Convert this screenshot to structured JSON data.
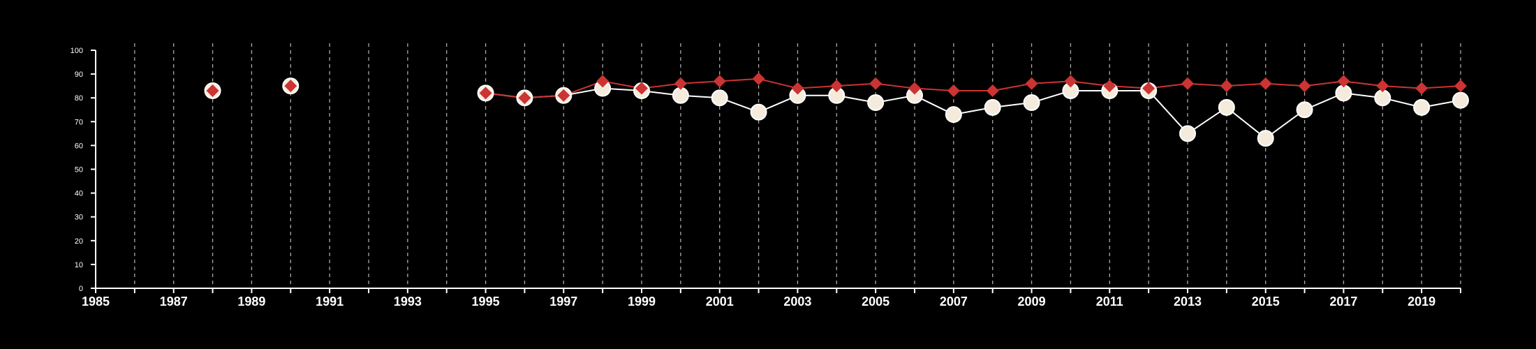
{
  "chart_data": {
    "type": "line",
    "title": "",
    "xlabel": "",
    "ylabel": "",
    "xlim": [
      1985,
      2020
    ],
    "ylim": [
      0,
      100
    ],
    "x_ticks": [
      1985,
      1987,
      1989,
      1991,
      1993,
      1995,
      1997,
      1999,
      2001,
      2003,
      2005,
      2007,
      2009,
      2011,
      2013,
      2015,
      2017,
      2019
    ],
    "y_ticks": [
      0,
      10,
      20,
      30,
      40,
      50,
      60,
      70,
      80,
      90,
      100
    ],
    "grid": "vertical dashed at each year",
    "legend": "none",
    "series": [
      {
        "marker": "circle",
        "color": "#ffffff",
        "fill": "#f5ebdc",
        "x": [
          1988,
          1990,
          1995,
          1996,
          1997,
          1998,
          1999,
          2000,
          2001,
          2002,
          2003,
          2004,
          2005,
          2006,
          2007,
          2008,
          2009,
          2010,
          2011,
          2012,
          2013,
          2014,
          2015,
          2016,
          2017,
          2018,
          2019,
          2020
        ],
        "values": [
          83,
          85,
          82,
          80,
          81,
          84,
          83,
          81,
          80,
          74,
          81,
          81,
          78,
          81,
          73,
          76,
          78,
          83,
          83,
          83,
          65,
          76,
          63,
          75,
          82,
          80,
          76,
          79
        ]
      },
      {
        "marker": "diamond",
        "color": "#cc3333",
        "x": [
          1988,
          1990,
          1995,
          1996,
          1997,
          1998,
          1999,
          2000,
          2001,
          2002,
          2003,
          2004,
          2005,
          2006,
          2007,
          2008,
          2009,
          2010,
          2011,
          2012,
          2013,
          2014,
          2015,
          2016,
          2017,
          2018,
          2019,
          2020
        ],
        "values": [
          83,
          85,
          82,
          80,
          81,
          87,
          84,
          86,
          87,
          88,
          84,
          85,
          86,
          84,
          83,
          83,
          86,
          87,
          85,
          84,
          86,
          85,
          86,
          85,
          87,
          85,
          84,
          85
        ]
      }
    ]
  }
}
